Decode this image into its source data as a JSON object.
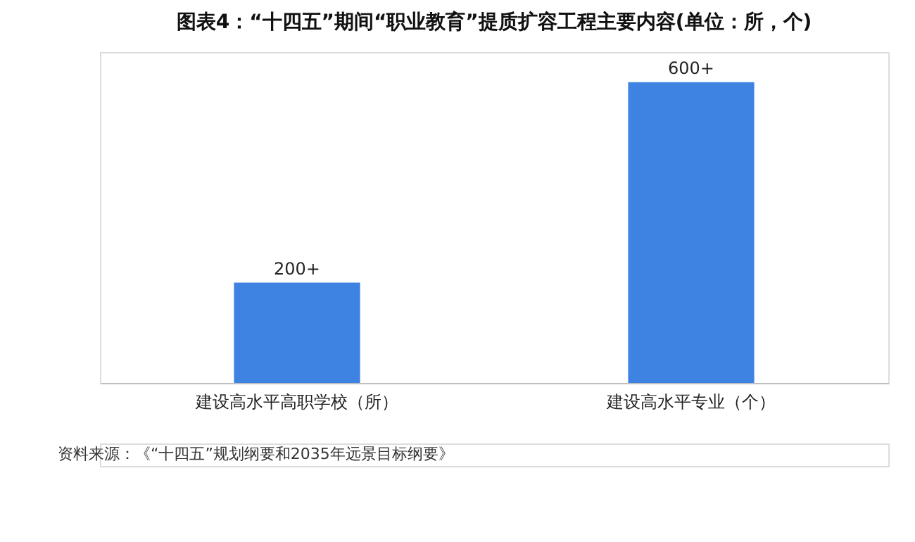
{
  "chart_data": {
    "type": "bar",
    "title": "图表4：“十四五”期间“职业教育”提质扩容工程主要内容(单位：所，个)",
    "categories": [
      "建设高水平高职学校（所）",
      "建设高水平专业（个）"
    ],
    "values": [
      200,
      600
    ],
    "value_labels": [
      "200+",
      "600+"
    ],
    "color": "#3f83e2",
    "ylim": [
      0,
      660
    ],
    "grid": false,
    "tick_labels": "x",
    "annotations": [
      "资料来源：《“十四五”规划纲要和2035年远景目标纲要》"
    ]
  }
}
